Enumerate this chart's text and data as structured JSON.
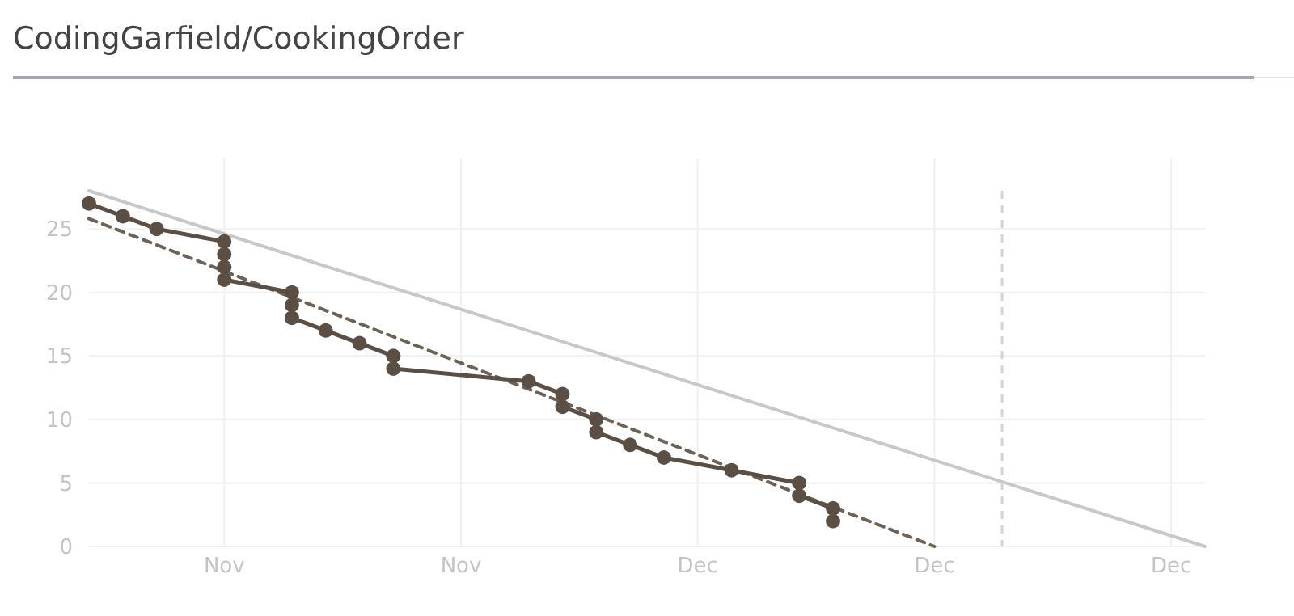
{
  "chart_data": {
    "type": "line",
    "title": "CodingGarfield/CookingOrder",
    "xlim": [
      "--11-18",
      "--12-21"
    ],
    "ylim": [
      0,
      28
    ],
    "xticks": [
      {
        "value": "--11-22",
        "label": "Nov"
      },
      {
        "value": "--11-29",
        "label": "Nov"
      },
      {
        "value": "--12-06",
        "label": "Dec"
      },
      {
        "value": "--12-13",
        "label": "Dec"
      },
      {
        "value": "--12-20",
        "label": "Dec"
      }
    ],
    "yticks": [
      0,
      5,
      10,
      15,
      20,
      25
    ],
    "grid": true,
    "ref_lines": [
      {
        "axis": "x",
        "value": "--12-15",
        "color": "#d4d4d4",
        "line_style": "dashed"
      }
    ],
    "series": [
      {
        "color": "#c8c8c8",
        "marker": "none",
        "line_style": "solid",
        "x": [
          "--11-18",
          "--12-21"
        ],
        "values": [
          28,
          0
        ]
      },
      {
        "color": "#6e6256",
        "marker": "none",
        "line_style": "dashed",
        "x": [
          "--11-18",
          "--12-13"
        ],
        "values": [
          25.8,
          0
        ]
      },
      {
        "color": "#5b4f45",
        "marker": "circle",
        "line_style": "solid",
        "x": [
          "--11-18",
          "--11-19",
          "--11-20",
          "--11-22",
          "--11-22",
          "--11-22",
          "--11-22",
          "--11-24",
          "--11-24",
          "--11-24",
          "--11-25",
          "--11-26",
          "--11-27",
          "--11-27",
          "--12-01",
          "--12-02",
          "--12-02",
          "--12-03",
          "--12-03",
          "--12-04",
          "--12-05",
          "--12-07",
          "--12-09",
          "--12-09",
          "--12-10",
          "--12-10"
        ],
        "values": [
          27,
          26,
          25,
          24,
          23,
          22,
          21,
          20,
          19,
          18,
          17,
          16,
          15,
          14,
          13,
          12,
          11,
          10,
          9,
          8,
          7,
          6,
          5,
          4,
          3,
          2
        ]
      }
    ]
  }
}
